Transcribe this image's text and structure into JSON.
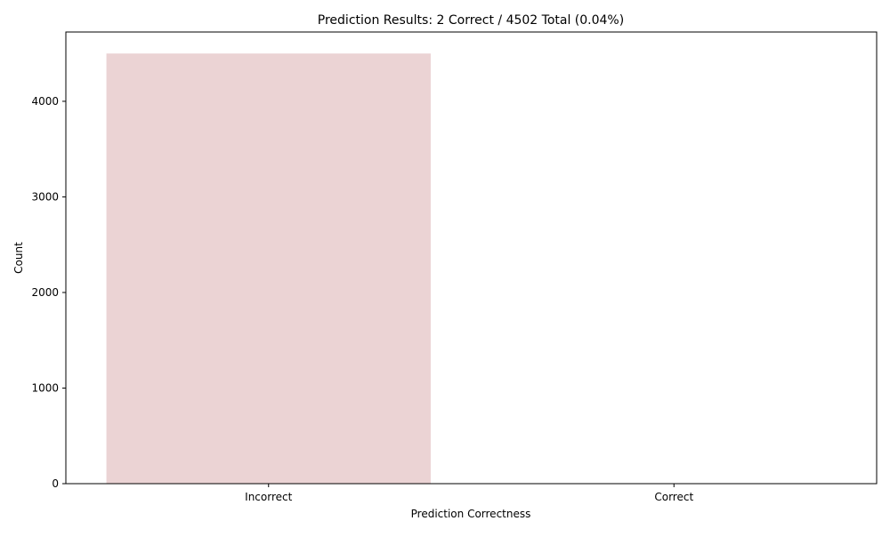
{
  "chart_data": {
    "type": "bar",
    "title": "Prediction Results: 2 Correct / 4502 Total (0.04%)",
    "xlabel": "Prediction Correctness",
    "ylabel": "Count",
    "categories": [
      "Incorrect",
      "Correct"
    ],
    "values": [
      4500,
      2
    ],
    "bar_colors": [
      "#ebd3d4",
      "#ebd3d4"
    ],
    "ylim": [
      0,
      4725
    ],
    "yticks": [
      0,
      1000,
      2000,
      3000,
      4000
    ],
    "ytick_labels": [
      "0",
      "1000",
      "2000",
      "3000",
      "4000"
    ],
    "grid": false,
    "legend": "none"
  }
}
